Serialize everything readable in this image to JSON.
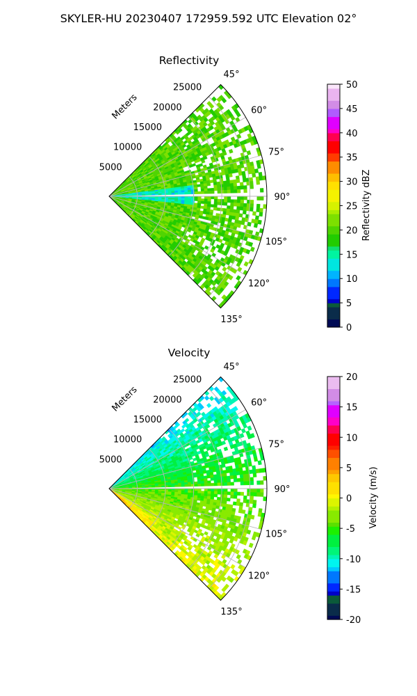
{
  "figure": {
    "suptitle": "SKYLER-HU  20230407  172959.592 UTC Elevation 02°"
  },
  "chart_data": [
    {
      "type": "heatmap",
      "projection": "polar-sector",
      "title": "Reflectivity",
      "range_label": "Meters",
      "range_ticks": [
        5000,
        10000,
        15000,
        20000,
        25000
      ],
      "range_tick_labels": [
        "5000",
        "10000",
        "15000",
        "20000",
        "25000"
      ],
      "range_max": 28000,
      "azimuth_range": [
        45,
        135
      ],
      "azimuth_ticks": [
        45,
        60,
        75,
        90,
        105,
        120,
        135
      ],
      "azimuth_tick_labels": [
        "45°",
        "60°",
        "75°",
        "90°",
        "105°",
        "120°",
        "135°"
      ],
      "grid": true,
      "colorbar": {
        "label": "Reflectivity dBZ",
        "min": 0,
        "max": 50,
        "ticks": [
          0,
          5,
          10,
          15,
          20,
          25,
          30,
          35,
          40,
          45,
          50
        ],
        "tick_labels": [
          "0",
          "5",
          "10",
          "15",
          "20",
          "25",
          "30",
          "35",
          "40",
          "45",
          "50"
        ],
        "colormap": "NWSRef"
      },
      "field": {
        "typical_value": 20,
        "near_radar_low_value_sector": [
          82,
          96
        ],
        "near_radar_low_value": 14,
        "data_gap_azimuth": 89,
        "data_gaps_azimuth_bands": [
          [
            44,
            51
          ],
          [
            69,
            74
          ],
          [
            113,
            123
          ]
        ]
      }
    },
    {
      "type": "heatmap",
      "projection": "polar-sector",
      "title": "Velocity",
      "range_label": "Meters",
      "range_ticks": [
        5000,
        10000,
        15000,
        20000,
        25000
      ],
      "range_tick_labels": [
        "5000",
        "10000",
        "15000",
        "20000",
        "25000"
      ],
      "range_max": 28000,
      "azimuth_range": [
        45,
        135
      ],
      "azimuth_ticks": [
        45,
        60,
        75,
        90,
        105,
        120,
        135
      ],
      "azimuth_tick_labels": [
        "45°",
        "60°",
        "75°",
        "90°",
        "105°",
        "120°",
        "135°"
      ],
      "grid": true,
      "colorbar": {
        "label": "Velocity (m/s)",
        "min": -20,
        "max": 20,
        "ticks": [
          -20,
          -15,
          -10,
          -5,
          0,
          5,
          10,
          15,
          20
        ],
        "tick_labels": [
          "-20",
          "-15",
          "-10",
          "-5",
          "0",
          "5",
          "10",
          "15",
          "20"
        ],
        "colormap": "NWSVel"
      },
      "field": {
        "value_at_45_deg": -11,
        "value_at_90_deg": -5,
        "value_at_135_deg": 0,
        "near_radar_max_value": 6,
        "data_gap_azimuth": 89,
        "data_gaps_azimuth_bands": [
          [
            44,
            51
          ],
          [
            69,
            74
          ],
          [
            113,
            123
          ]
        ]
      }
    }
  ]
}
